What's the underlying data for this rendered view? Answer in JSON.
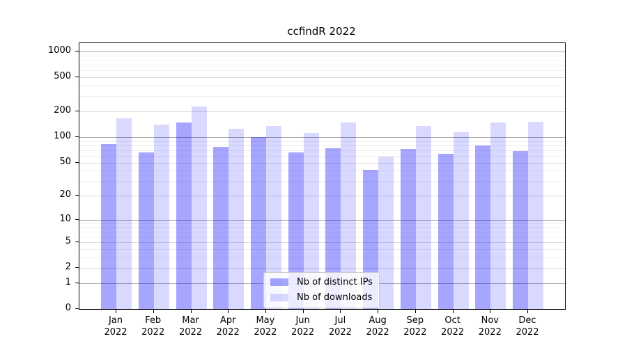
{
  "chart_data": {
    "type": "bar",
    "title": "ccfindR 2022",
    "months": [
      "Jan",
      "Feb",
      "Mar",
      "Apr",
      "May",
      "Jun",
      "Jul",
      "Aug",
      "Sep",
      "Oct",
      "Nov",
      "Dec"
    ],
    "year": "2022",
    "series": [
      {
        "name": "Nb of distinct IPs",
        "color": "rgba(0,0,255,0.35)",
        "values": [
          82,
          66,
          148,
          77,
          100,
          66,
          74,
          41,
          72,
          64,
          79,
          69
        ]
      },
      {
        "name": "Nb of downloads",
        "color": "rgba(0,0,255,0.15)",
        "values": [
          165,
          141,
          230,
          126,
          135,
          112,
          149,
          59,
          135,
          115,
          148,
          150
        ]
      }
    ],
    "yscale": "log1p",
    "yticks": [
      0,
      1,
      2,
      5,
      10,
      20,
      50,
      100,
      200,
      500,
      1000
    ],
    "ylim": [
      0,
      1253
    ],
    "xlabel": "",
    "ylabel": "",
    "grid": true,
    "legend_position": "lower center",
    "background_color": "#ffffff"
  }
}
